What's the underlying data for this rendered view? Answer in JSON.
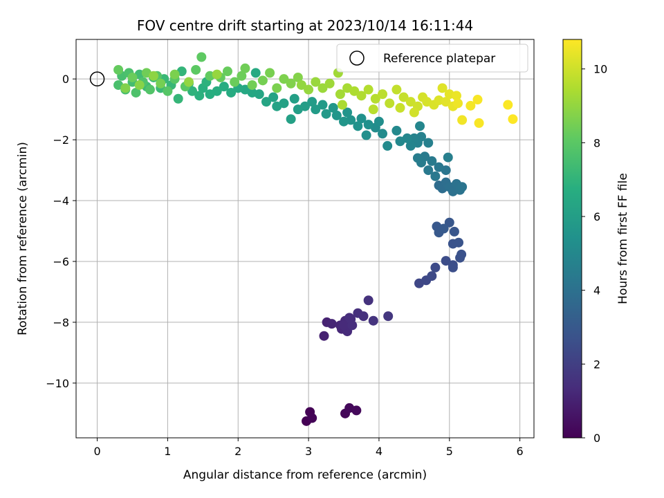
{
  "chart_data": {
    "type": "scatter",
    "title": "FOV centre drift starting at 2023/10/14 16:11:44",
    "xlabel": "Angular distance from reference (arcmin)",
    "ylabel": "Rotation from reference (arcmin)",
    "xlim": [
      -0.3,
      6.2
    ],
    "ylim": [
      -11.8,
      1.3
    ],
    "xticks": [
      0,
      1,
      2,
      3,
      4,
      5,
      6
    ],
    "yticks": [
      0,
      -2,
      -4,
      -6,
      -8,
      -10
    ],
    "grid": true,
    "legend": {
      "placement": "top-right",
      "entries": [
        "Reference platepar"
      ]
    },
    "reference_point": {
      "x": 0,
      "y": 0
    },
    "colorbar": {
      "label": "Hours from first FF file",
      "min": 0,
      "max": 10.8,
      "ticks": [
        0,
        2,
        4,
        6,
        8,
        10
      ],
      "colormap": "viridis"
    },
    "points": [
      {
        "x": 2.97,
        "y": -11.25,
        "t": 0.0
      },
      {
        "x": 3.02,
        "y": -10.95,
        "t": 0.05
      },
      {
        "x": 3.05,
        "y": -11.15,
        "t": 0.1
      },
      {
        "x": 3.52,
        "y": -11.0,
        "t": 0.15
      },
      {
        "x": 3.58,
        "y": -10.82,
        "t": 0.2
      },
      {
        "x": 3.68,
        "y": -10.9,
        "t": 0.25
      },
      {
        "x": 3.22,
        "y": -8.45,
        "t": 1.0
      },
      {
        "x": 3.26,
        "y": -8.0,
        "t": 1.05
      },
      {
        "x": 3.33,
        "y": -8.05,
        "t": 1.1
      },
      {
        "x": 3.45,
        "y": -8.1,
        "t": 1.15
      },
      {
        "x": 3.47,
        "y": -8.22,
        "t": 1.2
      },
      {
        "x": 3.52,
        "y": -7.95,
        "t": 1.25
      },
      {
        "x": 3.55,
        "y": -8.3,
        "t": 1.3
      },
      {
        "x": 3.6,
        "y": -7.9,
        "t": 1.35
      },
      {
        "x": 3.62,
        "y": -8.1,
        "t": 1.4
      },
      {
        "x": 3.7,
        "y": -7.7,
        "t": 1.45
      },
      {
        "x": 3.78,
        "y": -7.8,
        "t": 1.5
      },
      {
        "x": 3.85,
        "y": -7.28,
        "t": 1.55
      },
      {
        "x": 3.92,
        "y": -7.95,
        "t": 1.6
      },
      {
        "x": 3.5,
        "y": -8.1,
        "t": 1.3
      },
      {
        "x": 3.58,
        "y": -7.85,
        "t": 1.4
      },
      {
        "x": 4.13,
        "y": -7.8,
        "t": 1.7
      },
      {
        "x": 4.57,
        "y": -6.72,
        "t": 2.3
      },
      {
        "x": 4.67,
        "y": -6.62,
        "t": 2.35
      },
      {
        "x": 4.75,
        "y": -6.48,
        "t": 2.4
      },
      {
        "x": 4.8,
        "y": -6.2,
        "t": 2.45
      },
      {
        "x": 4.95,
        "y": -5.98,
        "t": 2.5
      },
      {
        "x": 5.05,
        "y": -6.12,
        "t": 2.55
      },
      {
        "x": 5.05,
        "y": -6.2,
        "t": 2.6
      },
      {
        "x": 5.15,
        "y": -5.88,
        "t": 2.65
      },
      {
        "x": 5.17,
        "y": -5.77,
        "t": 2.7
      },
      {
        "x": 5.05,
        "y": -5.42,
        "t": 2.75
      },
      {
        "x": 5.13,
        "y": -5.38,
        "t": 2.8
      },
      {
        "x": 5.07,
        "y": -5.02,
        "t": 2.85
      },
      {
        "x": 5.0,
        "y": -4.72,
        "t": 2.9
      },
      {
        "x": 4.82,
        "y": -4.85,
        "t": 2.95
      },
      {
        "x": 4.85,
        "y": -5.05,
        "t": 3.0
      },
      {
        "x": 4.92,
        "y": -4.92,
        "t": 3.05
      },
      {
        "x": 4.85,
        "y": -3.5,
        "t": 3.8
      },
      {
        "x": 4.9,
        "y": -3.6,
        "t": 3.85
      },
      {
        "x": 4.95,
        "y": -3.4,
        "t": 3.9
      },
      {
        "x": 5.0,
        "y": -3.55,
        "t": 3.95
      },
      {
        "x": 5.05,
        "y": -3.7,
        "t": 4.0
      },
      {
        "x": 5.1,
        "y": -3.45,
        "t": 4.05
      },
      {
        "x": 5.15,
        "y": -3.65,
        "t": 4.1
      },
      {
        "x": 5.18,
        "y": -3.55,
        "t": 4.15
      },
      {
        "x": 4.95,
        "y": -3.0,
        "t": 4.2
      },
      {
        "x": 4.85,
        "y": -2.9,
        "t": 4.25
      },
      {
        "x": 4.8,
        "y": -3.2,
        "t": 4.3
      },
      {
        "x": 4.7,
        "y": -3.0,
        "t": 4.35
      },
      {
        "x": 4.75,
        "y": -2.7,
        "t": 4.4
      },
      {
        "x": 4.65,
        "y": -2.55,
        "t": 4.45
      },
      {
        "x": 4.6,
        "y": -2.75,
        "t": 4.5
      },
      {
        "x": 4.55,
        "y": -2.6,
        "t": 4.55
      },
      {
        "x": 4.98,
        "y": -2.58,
        "t": 4.6
      },
      {
        "x": 4.7,
        "y": -2.1,
        "t": 4.65
      },
      {
        "x": 4.6,
        "y": -1.9,
        "t": 4.7
      },
      {
        "x": 4.55,
        "y": -2.1,
        "t": 4.75
      },
      {
        "x": 4.5,
        "y": -1.95,
        "t": 4.8
      },
      {
        "x": 4.45,
        "y": -2.2,
        "t": 4.85
      },
      {
        "x": 4.58,
        "y": -1.55,
        "t": 4.9
      },
      {
        "x": 4.4,
        "y": -1.95,
        "t": 4.95
      },
      {
        "x": 4.3,
        "y": -2.05,
        "t": 5.0
      },
      {
        "x": 4.25,
        "y": -1.7,
        "t": 5.05
      },
      {
        "x": 4.12,
        "y": -2.2,
        "t": 5.1
      },
      {
        "x": 4.05,
        "y": -1.8,
        "t": 5.15
      },
      {
        "x": 3.95,
        "y": -1.6,
        "t": 5.2
      },
      {
        "x": 4.0,
        "y": -1.4,
        "t": 5.25
      },
      {
        "x": 3.82,
        "y": -1.85,
        "t": 5.3
      },
      {
        "x": 3.85,
        "y": -1.5,
        "t": 5.35
      },
      {
        "x": 3.75,
        "y": -1.3,
        "t": 5.4
      },
      {
        "x": 3.7,
        "y": -1.55,
        "t": 5.45
      },
      {
        "x": 3.6,
        "y": -1.35,
        "t": 5.5
      },
      {
        "x": 3.55,
        "y": -1.1,
        "t": 5.55
      },
      {
        "x": 3.5,
        "y": -1.4,
        "t": 5.6
      },
      {
        "x": 3.4,
        "y": -1.2,
        "t": 5.65
      },
      {
        "x": 3.35,
        "y": -0.95,
        "t": 5.7
      },
      {
        "x": 3.25,
        "y": -1.15,
        "t": 5.75
      },
      {
        "x": 3.2,
        "y": -0.85,
        "t": 5.8
      },
      {
        "x": 3.1,
        "y": -1.0,
        "t": 5.85
      },
      {
        "x": 3.05,
        "y": -0.75,
        "t": 5.9
      },
      {
        "x": 2.95,
        "y": -0.9,
        "t": 5.95
      },
      {
        "x": 2.85,
        "y": -1.0,
        "t": 6.0
      },
      {
        "x": 2.8,
        "y": -0.65,
        "t": 6.05
      },
      {
        "x": 2.75,
        "y": -1.32,
        "t": 6.1
      },
      {
        "x": 2.65,
        "y": -0.8,
        "t": 6.15
      },
      {
        "x": 2.55,
        "y": -0.9,
        "t": 6.2
      },
      {
        "x": 2.5,
        "y": -0.6,
        "t": 6.25
      },
      {
        "x": 2.4,
        "y": -0.75,
        "t": 6.3
      },
      {
        "x": 2.3,
        "y": -0.5,
        "t": 6.35
      },
      {
        "x": 2.2,
        "y": -0.45,
        "t": 6.4
      },
      {
        "x": 2.1,
        "y": -0.35,
        "t": 6.45
      },
      {
        "x": 2.25,
        "y": 0.2,
        "t": 6.5
      },
      {
        "x": 2.0,
        "y": -0.3,
        "t": 6.55
      },
      {
        "x": 1.9,
        "y": -0.45,
        "t": 6.6
      },
      {
        "x": 1.8,
        "y": -0.25,
        "t": 6.65
      },
      {
        "x": 1.7,
        "y": -0.4,
        "t": 6.7
      },
      {
        "x": 1.6,
        "y": -0.5,
        "t": 6.75
      },
      {
        "x": 1.5,
        "y": -0.3,
        "t": 6.8
      },
      {
        "x": 1.45,
        "y": -0.55,
        "t": 6.85
      },
      {
        "x": 1.55,
        "y": -0.1,
        "t": 6.9
      },
      {
        "x": 1.35,
        "y": -0.4,
        "t": 6.95
      },
      {
        "x": 1.3,
        "y": -0.15,
        "t": 7.0
      },
      {
        "x": 1.2,
        "y": 0.25,
        "t": 7.05
      },
      {
        "x": 1.15,
        "y": -0.65,
        "t": 7.1
      },
      {
        "x": 1.05,
        "y": -0.2,
        "t": 7.15
      },
      {
        "x": 0.95,
        "y": 0.0,
        "t": 7.2
      },
      {
        "x": 0.9,
        "y": -0.3,
        "t": 7.25
      },
      {
        "x": 0.8,
        "y": 0.05,
        "t": 7.3
      },
      {
        "x": 0.7,
        "y": -0.25,
        "t": 7.35
      },
      {
        "x": 0.6,
        "y": 0.15,
        "t": 7.4
      },
      {
        "x": 0.5,
        "y": -0.1,
        "t": 7.45
      },
      {
        "x": 0.4,
        "y": -0.35,
        "t": 7.5
      },
      {
        "x": 0.35,
        "y": 0.1,
        "t": 7.55
      },
      {
        "x": 0.3,
        "y": -0.2,
        "t": 7.6
      },
      {
        "x": 0.45,
        "y": 0.2,
        "t": 7.65
      },
      {
        "x": 0.55,
        "y": -0.45,
        "t": 7.7
      },
      {
        "x": 0.65,
        "y": -0.1,
        "t": 7.75
      },
      {
        "x": 0.75,
        "y": -0.35,
        "t": 7.8
      },
      {
        "x": 0.85,
        "y": 0.1,
        "t": 7.85
      },
      {
        "x": 1.0,
        "y": -0.4,
        "t": 7.9
      },
      {
        "x": 1.1,
        "y": 0.0,
        "t": 7.95
      },
      {
        "x": 1.25,
        "y": -0.25,
        "t": 8.0
      },
      {
        "x": 1.4,
        "y": 0.3,
        "t": 8.05
      },
      {
        "x": 1.48,
        "y": 0.72,
        "t": 8.1
      },
      {
        "x": 1.6,
        "y": 0.1,
        "t": 8.15
      },
      {
        "x": 1.75,
        "y": 0.05,
        "t": 8.2
      },
      {
        "x": 1.85,
        "y": 0.25,
        "t": 8.25
      },
      {
        "x": 1.95,
        "y": -0.1,
        "t": 8.3
      },
      {
        "x": 2.05,
        "y": 0.1,
        "t": 8.35
      },
      {
        "x": 2.1,
        "y": 0.35,
        "t": 8.4
      },
      {
        "x": 2.2,
        "y": -0.2,
        "t": 8.45
      },
      {
        "x": 2.35,
        "y": -0.05,
        "t": 8.5
      },
      {
        "x": 2.45,
        "y": 0.2,
        "t": 8.55
      },
      {
        "x": 2.55,
        "y": -0.3,
        "t": 8.6
      },
      {
        "x": 2.65,
        "y": 0.0,
        "t": 8.65
      },
      {
        "x": 2.75,
        "y": -0.15,
        "t": 8.7
      },
      {
        "x": 2.85,
        "y": 0.05,
        "t": 8.75
      },
      {
        "x": 0.3,
        "y": 0.3,
        "t": 8.2
      },
      {
        "x": 0.5,
        "y": 0.05,
        "t": 8.3
      },
      {
        "x": 0.7,
        "y": 0.2,
        "t": 8.4
      },
      {
        "x": 0.9,
        "y": -0.15,
        "t": 8.5
      },
      {
        "x": 1.1,
        "y": 0.15,
        "t": 8.6
      },
      {
        "x": 0.4,
        "y": -0.3,
        "t": 8.7
      },
      {
        "x": 0.6,
        "y": -0.2,
        "t": 8.8
      },
      {
        "x": 0.8,
        "y": 0.1,
        "t": 8.9
      },
      {
        "x": 1.3,
        "y": -0.1,
        "t": 9.0
      },
      {
        "x": 1.7,
        "y": 0.15,
        "t": 9.05
      },
      {
        "x": 2.9,
        "y": -0.2,
        "t": 9.0
      },
      {
        "x": 3.0,
        "y": -0.35,
        "t": 9.05
      },
      {
        "x": 3.1,
        "y": -0.1,
        "t": 9.1
      },
      {
        "x": 3.2,
        "y": -0.3,
        "t": 9.15
      },
      {
        "x": 3.3,
        "y": -0.15,
        "t": 9.2
      },
      {
        "x": 3.42,
        "y": 0.2,
        "t": 9.25
      },
      {
        "x": 3.45,
        "y": -0.5,
        "t": 9.3
      },
      {
        "x": 3.55,
        "y": -0.3,
        "t": 9.35
      },
      {
        "x": 3.48,
        "y": -0.85,
        "t": 9.4
      },
      {
        "x": 3.65,
        "y": -0.4,
        "t": 9.45
      },
      {
        "x": 3.75,
        "y": -0.55,
        "t": 9.5
      },
      {
        "x": 3.85,
        "y": -0.35,
        "t": 9.55
      },
      {
        "x": 3.95,
        "y": -0.65,
        "t": 9.6
      },
      {
        "x": 3.92,
        "y": -1.0,
        "t": 9.65
      },
      {
        "x": 4.05,
        "y": -0.5,
        "t": 9.7
      },
      {
        "x": 4.15,
        "y": -0.8,
        "t": 9.75
      },
      {
        "x": 4.25,
        "y": -0.35,
        "t": 9.8
      },
      {
        "x": 4.35,
        "y": -0.6,
        "t": 9.85
      },
      {
        "x": 4.3,
        "y": -0.95,
        "t": 9.9
      },
      {
        "x": 4.45,
        "y": -0.75,
        "t": 9.95
      },
      {
        "x": 4.55,
        "y": -0.9,
        "t": 10.0
      },
      {
        "x": 4.5,
        "y": -1.1,
        "t": 10.05
      },
      {
        "x": 4.62,
        "y": -0.6,
        "t": 10.1
      },
      {
        "x": 4.68,
        "y": -0.75,
        "t": 10.15
      },
      {
        "x": 4.78,
        "y": -0.85,
        "t": 10.2
      },
      {
        "x": 4.85,
        "y": -0.7,
        "t": 10.25
      },
      {
        "x": 4.9,
        "y": -0.3,
        "t": 10.3
      },
      {
        "x": 4.95,
        "y": -0.75,
        "t": 10.35
      },
      {
        "x": 5.0,
        "y": -0.5,
        "t": 10.4
      },
      {
        "x": 5.05,
        "y": -0.9,
        "t": 10.45
      },
      {
        "x": 5.1,
        "y": -0.55,
        "t": 10.5
      },
      {
        "x": 5.12,
        "y": -0.8,
        "t": 10.55
      },
      {
        "x": 5.18,
        "y": -1.35,
        "t": 10.6
      },
      {
        "x": 5.3,
        "y": -0.88,
        "t": 10.65
      },
      {
        "x": 5.4,
        "y": -0.68,
        "t": 10.7
      },
      {
        "x": 5.42,
        "y": -1.45,
        "t": 10.72
      },
      {
        "x": 5.83,
        "y": -0.85,
        "t": 10.75
      },
      {
        "x": 5.9,
        "y": -1.32,
        "t": 10.8
      }
    ]
  }
}
